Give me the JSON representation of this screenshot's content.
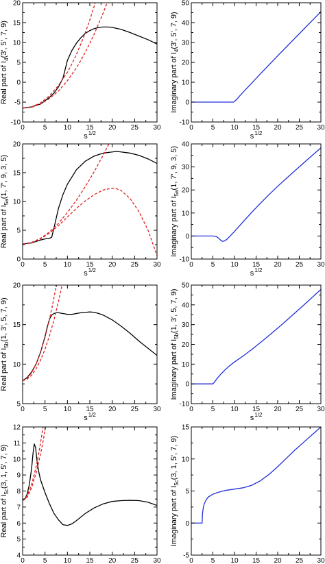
{
  "chart_data": [
    {
      "type": "line",
      "xlabel": "s",
      "xlabel_sup": "1/2",
      "ylabel": "Real part of  I",
      "ylabel_sub": "4",
      "ylabel_args": "(3', 5', 7, 9)",
      "xlim": [
        0,
        30
      ],
      "ylim": [
        -10,
        20
      ],
      "xticks": [
        0,
        5,
        10,
        15,
        20,
        25,
        30
      ],
      "yticks": [
        -10,
        -5,
        0,
        5,
        10,
        15,
        20
      ],
      "series": [
        {
          "color": "#000000",
          "dash": "solid",
          "x": [
            0,
            2,
            4,
            6,
            7,
            8,
            9,
            10,
            11,
            12,
            13,
            14,
            15,
            16,
            17,
            18,
            19,
            20,
            22,
            24,
            26,
            28,
            30
          ],
          "y": [
            -6.5,
            -6.2,
            -5.5,
            -3.8,
            -2.7,
            -1.2,
            1,
            5.5,
            8,
            9.8,
            11.2,
            12.3,
            13,
            13.5,
            13.8,
            13.9,
            13.9,
            13.8,
            13.3,
            12.5,
            11.6,
            10.7,
            9.6
          ]
        },
        {
          "color": "#e02020",
          "dash": "dashed",
          "x": [
            0,
            2,
            4,
            6,
            8,
            10,
            11,
            12,
            13,
            14,
            15,
            16,
            17
          ],
          "y": [
            -6.5,
            -6.2,
            -5.2,
            -3.4,
            -0.8,
            2.5,
            4.6,
            7,
            9.6,
            12.5,
            15.7,
            19.2,
            23
          ]
        },
        {
          "color": "#e02020",
          "dash": "dashed",
          "x": [
            0,
            2,
            4,
            6,
            8,
            10,
            12,
            13,
            14,
            15,
            16,
            17,
            18,
            19,
            20
          ],
          "y": [
            -6.5,
            -6.3,
            -5.5,
            -4.1,
            -2.2,
            0.4,
            3.6,
            5.5,
            7.6,
            9.8,
            12.2,
            14.8,
            17.5,
            20.4,
            23.4
          ]
        }
      ]
    },
    {
      "type": "line",
      "xlabel": "s",
      "xlabel_sup": "1/2",
      "ylabel": "Imaginary part of  I",
      "ylabel_sub": "4",
      "ylabel_args": "(3', 5', 7, 9)",
      "xlim": [
        0,
        30
      ],
      "ylim": [
        -10,
        50
      ],
      "xticks": [
        0,
        5,
        10,
        15,
        20,
        25,
        30
      ],
      "yticks": [
        -10,
        0,
        10,
        20,
        30,
        40,
        50
      ],
      "series": [
        {
          "color": "#1f2fd6",
          "dash": "solid",
          "x": [
            0,
            5,
            9,
            9.8,
            10.5,
            11,
            12,
            13,
            14,
            15,
            17,
            20,
            25,
            30
          ],
          "y": [
            0,
            0,
            0,
            0,
            1.3,
            2.6,
            5,
            7.3,
            9.6,
            11.9,
            16.5,
            23.3,
            34.4,
            45.5
          ]
        }
      ]
    },
    {
      "type": "line",
      "xlabel": "s",
      "xlabel_sup": "1/2",
      "ylabel": "Real part of  I",
      "ylabel_sub": "5a",
      "ylabel_args": "(1, 7', 9, 3, 5)",
      "xlim": [
        0,
        30
      ],
      "ylim": [
        0,
        20
      ],
      "xticks": [
        0,
        5,
        10,
        15,
        20,
        25,
        30
      ],
      "yticks": [
        0,
        5,
        10,
        15,
        20
      ],
      "series": [
        {
          "color": "#000000",
          "dash": "solid",
          "x": [
            0,
            2,
            4,
            5,
            6,
            6.5,
            7,
            8,
            9,
            10,
            12,
            14,
            16,
            18,
            20,
            21,
            22,
            24,
            26,
            28,
            30
          ],
          "y": [
            2.6,
            2.8,
            3.3,
            3.5,
            3.6,
            3.8,
            5.4,
            8.8,
            11.2,
            13,
            15.5,
            17,
            17.9,
            18.4,
            18.6,
            18.7,
            18.6,
            18.4,
            18,
            17.4,
            16.6
          ]
        },
        {
          "color": "#e02020",
          "dash": "dashed",
          "x": [
            0,
            2,
            4,
            6,
            8,
            10,
            12,
            14,
            16,
            18,
            19,
            20
          ],
          "y": [
            2.6,
            2.9,
            3.6,
            4.7,
            6.2,
            8.1,
            10.2,
            12.6,
            15.2,
            18.1,
            19.6,
            21.2
          ]
        },
        {
          "color": "#e02020",
          "dash": "dashed",
          "x": [
            0,
            2,
            4,
            6,
            8,
            10,
            12,
            14,
            16,
            18,
            20,
            21,
            22,
            24,
            26,
            28,
            30
          ],
          "y": [
            2.6,
            2.8,
            3.5,
            4.5,
            5.8,
            7.3,
            8.8,
            10.1,
            11.2,
            12,
            12.3,
            12.2,
            11.9,
            10.5,
            8.2,
            5,
            0.6
          ]
        }
      ]
    },
    {
      "type": "line",
      "xlabel": "s",
      "xlabel_sup": "1/2",
      "ylabel": "Imaginary part of  I",
      "ylabel_sub": "5a",
      "ylabel_args": "(1, 7', 9, 3, 5)",
      "xlim": [
        0,
        30
      ],
      "ylim": [
        -10,
        40
      ],
      "xticks": [
        0,
        5,
        10,
        15,
        20,
        25,
        30
      ],
      "yticks": [
        -10,
        0,
        10,
        20,
        30,
        40
      ],
      "series": [
        {
          "color": "#1f2fd6",
          "dash": "solid",
          "x": [
            0,
            3,
            5,
            5.8,
            6.3,
            6.8,
            7.2,
            7.7,
            8.2,
            9,
            10,
            12,
            14,
            16,
            18,
            20,
            22,
            24,
            26,
            28,
            30
          ],
          "y": [
            0,
            0,
            0,
            -0.2,
            -0.9,
            -1.8,
            -2.3,
            -2.1,
            -1.5,
            0,
            2,
            6.2,
            10.3,
            14.2,
            18,
            21.6,
            25,
            28.4,
            31.7,
            35,
            38.3
          ]
        }
      ]
    },
    {
      "type": "line",
      "xlabel": "s",
      "xlabel_sup": "1/2",
      "ylabel": "Real part of  I",
      "ylabel_sub": "5b",
      "ylabel_args": "(1, 3', 5, 7, 9)",
      "xlim": [
        0,
        30
      ],
      "ylim": [
        5,
        20
      ],
      "xticks": [
        0,
        5,
        10,
        15,
        20,
        25,
        30
      ],
      "yticks": [
        5,
        10,
        15,
        20
      ],
      "series": [
        {
          "color": "#000000",
          "dash": "solid",
          "x": [
            0,
            1,
            2,
            3,
            4,
            5,
            5.5,
            6,
            6.5,
            7,
            7.5,
            8,
            9,
            10,
            11,
            12,
            13,
            14,
            15,
            16,
            17,
            18,
            20,
            22,
            24,
            26,
            28,
            30
          ],
          "y": [
            7.9,
            8.3,
            9,
            10,
            11.5,
            13.5,
            14.7,
            15.7,
            16.2,
            16.4,
            16.5,
            16.5,
            16.4,
            16.3,
            16.3,
            16.4,
            16.5,
            16.55,
            16.6,
            16.55,
            16.4,
            16.2,
            15.6,
            14.8,
            13.9,
            12.9,
            12,
            11.1
          ]
        },
        {
          "color": "#e02020",
          "dash": "dashed",
          "x": [
            0,
            1,
            2,
            3,
            4,
            5,
            6,
            6.5,
            7,
            7.5,
            8
          ],
          "y": [
            7.9,
            8.2,
            8.9,
            10,
            11.5,
            13.4,
            15.7,
            17,
            18.4,
            19.9,
            21.5
          ]
        },
        {
          "color": "#e02020",
          "dash": "dashed",
          "x": [
            0,
            1,
            2,
            3,
            4,
            5,
            6,
            7,
            8,
            8.5,
            9
          ],
          "y": [
            7.9,
            8.1,
            8.6,
            9.4,
            10.5,
            11.9,
            13.6,
            15.6,
            17.9,
            19.2,
            20.5
          ]
        }
      ]
    },
    {
      "type": "line",
      "xlabel": "s",
      "xlabel_sup": "1/2",
      "ylabel": "Imaginary part of  I",
      "ylabel_sub": "5b",
      "ylabel_args": "(1, 3', 5, 7, 9)",
      "xlim": [
        0,
        30
      ],
      "ylim": [
        -10,
        50
      ],
      "xticks": [
        0,
        5,
        10,
        15,
        20,
        25,
        30
      ],
      "yticks": [
        -10,
        0,
        10,
        20,
        30,
        40,
        50
      ],
      "series": [
        {
          "color": "#1f2fd6",
          "dash": "solid",
          "x": [
            0,
            3,
            5,
            5.5,
            6,
            7,
            8,
            9,
            10,
            11,
            12,
            14,
            16,
            18,
            20,
            22,
            24,
            26,
            28,
            30
          ],
          "y": [
            0,
            0,
            0,
            1.3,
            2.8,
            5.3,
            7.5,
            9.4,
            11.1,
            12.6,
            14.1,
            17.4,
            20.9,
            24.5,
            28.2,
            32,
            35.9,
            39.8,
            43.8,
            47.8
          ]
        }
      ]
    },
    {
      "type": "line",
      "xlabel": "s",
      "xlabel_sup": "1/2",
      "ylabel": "Real part of  I",
      "ylabel_sub": "5c",
      "ylabel_args": "(3, 1, 5', 7, 9)",
      "xlim": [
        0,
        30
      ],
      "ylim": [
        4,
        12
      ],
      "xticks": [
        0,
        5,
        10,
        15,
        20,
        25,
        30
      ],
      "yticks": [
        4,
        5,
        6,
        7,
        8,
        9,
        10,
        11,
        12
      ],
      "series": [
        {
          "color": "#000000",
          "dash": "solid",
          "x": [
            0,
            0.5,
            1,
            1.5,
            2,
            2.3,
            2.6,
            2.9,
            3.2,
            3.6,
            4,
            5,
            6,
            7,
            8,
            9,
            10,
            11,
            12,
            14,
            16,
            18,
            20,
            22,
            24,
            26,
            28,
            30
          ],
          "y": [
            7.4,
            7.5,
            7.8,
            8.4,
            9.4,
            10.3,
            10.95,
            10.7,
            9.9,
            9.2,
            8.7,
            7.9,
            7.2,
            6.6,
            6.2,
            5.9,
            5.85,
            5.95,
            6.15,
            6.6,
            6.95,
            7.2,
            7.35,
            7.4,
            7.42,
            7.4,
            7.3,
            7.1
          ]
        },
        {
          "color": "#e02020",
          "dash": "dashed",
          "x": [
            0,
            1,
            2,
            3,
            3.5,
            4,
            4.5,
            5
          ],
          "y": [
            7.4,
            7.7,
            8.4,
            9.5,
            10.2,
            11,
            11.9,
            12.9
          ]
        },
        {
          "color": "#e02020",
          "dash": "dashed",
          "x": [
            0,
            1,
            2,
            3,
            4,
            4.5,
            5,
            5.5
          ],
          "y": [
            7.4,
            7.6,
            8.2,
            9.1,
            10.3,
            11,
            11.8,
            12.6
          ]
        }
      ]
    },
    {
      "type": "line",
      "xlabel": "s",
      "xlabel_sup": "1/2",
      "ylabel": "Imaginary part of  I",
      "ylabel_sub": "5c",
      "ylabel_args": "(3, 1, 5', 7, 9)",
      "xlim": [
        0,
        30
      ],
      "ylim": [
        -5,
        15
      ],
      "xticks": [
        0,
        5,
        10,
        15,
        20,
        25,
        30
      ],
      "yticks": [
        -5,
        0,
        5,
        10,
        15
      ],
      "series": [
        {
          "color": "#1f2fd6",
          "dash": "solid",
          "x": [
            0,
            1,
            2,
            2.5,
            2.6,
            2.8,
            3,
            3.5,
            4,
            5,
            6,
            7,
            8,
            10,
            12,
            14,
            16,
            18,
            20,
            22,
            24,
            26,
            28,
            30
          ],
          "y": [
            0,
            0,
            0,
            0,
            1.5,
            2.5,
            3,
            3.7,
            4.1,
            4.5,
            4.75,
            4.95,
            5.1,
            5.3,
            5.5,
            5.9,
            6.6,
            7.6,
            8.8,
            10.1,
            11.4,
            12.6,
            13.8,
            15
          ]
        }
      ]
    }
  ]
}
